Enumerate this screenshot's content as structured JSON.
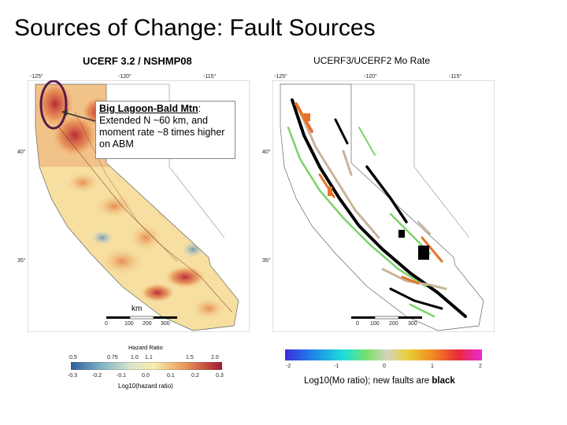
{
  "title": "Sources of Change: Fault Sources",
  "left_map": {
    "title": "UCERF 3.2 / NSHMP08",
    "lon_ticks": [
      "-125°",
      "-120°",
      "-115°"
    ],
    "lat_ticks": [
      "40°",
      "35°"
    ],
    "scale_unit": "km",
    "scale_ticks": [
      "0",
      "100",
      "200",
      "300"
    ],
    "legend": {
      "title": "Hazard Ratio",
      "top_ticks": [
        "0.5",
        "0.75",
        "1.0",
        "1.1",
        "1.5",
        "2.0"
      ],
      "bottom_ticks": [
        "-0.3",
        "-0.2",
        "-0.1",
        "0.0",
        "0.1",
        "0.2",
        "0.3"
      ],
      "xlabel": "Log10(hazard ratio)"
    }
  },
  "right_map": {
    "title": "UCERF3/UCERF2 Mo Rate",
    "lon_ticks": [
      "-125°",
      "-120°",
      "-115°"
    ],
    "lat_ticks": [
      "40°",
      "35°"
    ],
    "scale_ticks": [
      "0",
      "100",
      "200",
      "300"
    ],
    "colorbar_ticks": [
      "-2",
      "-1",
      "0",
      "1",
      "2"
    ],
    "caption_prefix": "Log10(Mo ratio); new faults are ",
    "caption_bold": "black"
  },
  "callout": {
    "title": "Big Lagoon-Bald Mtn",
    "title_suffix": ":",
    "body": "Extended N ~60 km, and moment rate ~8 times higher on ABM"
  },
  "colors": {
    "highlight_ellipse": "#5a1a4a",
    "arrow": "#333333"
  }
}
